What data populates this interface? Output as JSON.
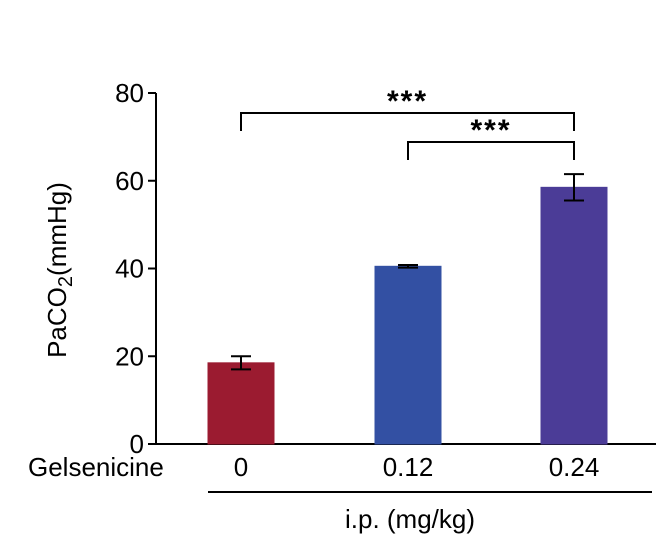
{
  "chart_data": {
    "type": "bar",
    "categories": [
      "0",
      "0.12",
      "0.24"
    ],
    "values": [
      18.5,
      40.5,
      58.5
    ],
    "errors": [
      1.5,
      0.3,
      3.0
    ],
    "bar_colors": [
      "#9b1b30",
      "#3350a3",
      "#4b3c97"
    ],
    "ylabel_main": "PaCO",
    "ylabel_sub": "2",
    "ylabel_unit": "(mmHg)",
    "x_group_label": "Gelsenicine",
    "x_treatment_label": "i.p. (mg/kg)",
    "ylim": [
      0,
      80
    ],
    "yticks": [
      0,
      20,
      40,
      60,
      80
    ],
    "significance": [
      {
        "from": 0,
        "to": 2,
        "label": "***"
      },
      {
        "from": 1,
        "to": 2,
        "label": "***"
      }
    ],
    "grid": false,
    "legend": "none"
  }
}
